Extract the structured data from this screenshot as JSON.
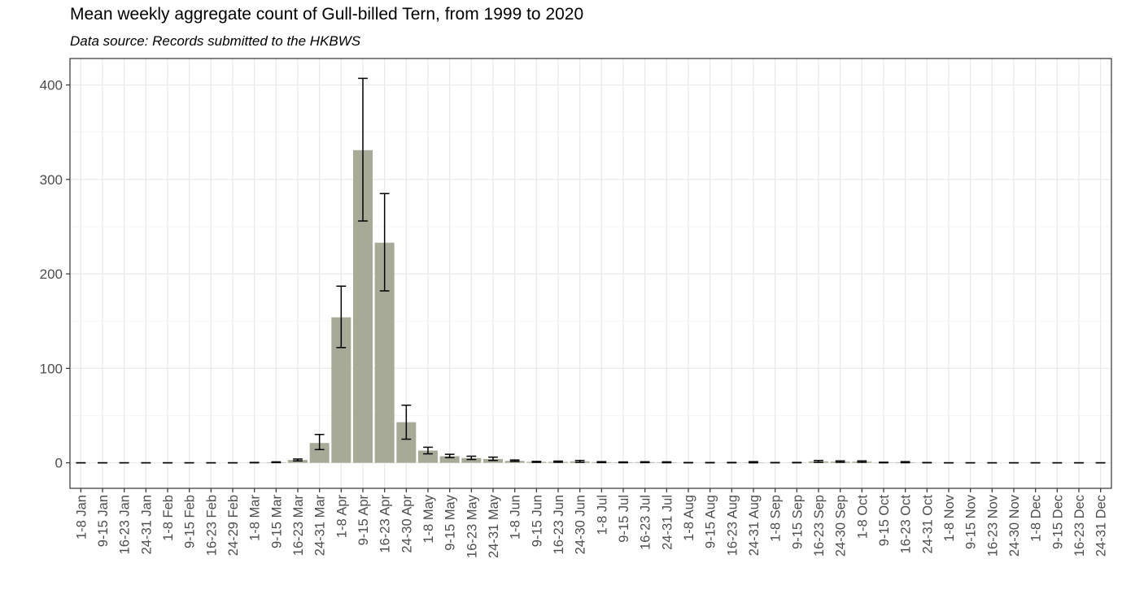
{
  "title": "Mean weekly aggregate count of Gull-billed Tern, from 1999 to 2020",
  "subtitle": "Data source: Records submitted to the HKBWS",
  "chart_data": {
    "type": "bar",
    "title": "Mean weekly aggregate count of Gull-billed Tern, from 1999 to 2020",
    "subtitle": "Data source: Records submitted to the HKBWS",
    "xlabel": "",
    "ylabel": "",
    "ylim": [
      -27,
      428
    ],
    "yticks": [
      0,
      100,
      200,
      300,
      400
    ],
    "grid": true,
    "bar_color": "#a8aa98",
    "categories": [
      "1-8 Jan",
      "9-15 Jan",
      "16-23 Jan",
      "24-31 Jan",
      "1-8 Feb",
      "9-15 Feb",
      "16-23 Feb",
      "24-29 Feb",
      "1-8 Mar",
      "9-15 Mar",
      "16-23 Mar",
      "24-31 Mar",
      "1-8 Apr",
      "9-15 Apr",
      "16-23 Apr",
      "24-30 Apr",
      "1-8 May",
      "9-15 May",
      "16-23 May",
      "24-31 May",
      "1-8 Jun",
      "9-15 Jun",
      "16-23 Jun",
      "24-30 Jun",
      "1-8 Jul",
      "9-15 Jul",
      "16-23 Jul",
      "24-31 Jul",
      "1-8 Aug",
      "9-15 Aug",
      "16-23 Aug",
      "24-31 Aug",
      "1-8 Sep",
      "9-15 Sep",
      "16-23 Sep",
      "24-30 Sep",
      "1-8 Oct",
      "9-15 Oct",
      "16-23 Oct",
      "24-31 Oct",
      "1-8 Nov",
      "9-15 Nov",
      "16-23 Nov",
      "24-30 Nov",
      "1-8 Dec",
      "9-15 Dec",
      "16-23 Dec",
      "24-31 Dec"
    ],
    "values": [
      0,
      0,
      0,
      0,
      0,
      0,
      0,
      0,
      0.1,
      0.5,
      3,
      21,
      154,
      331,
      233,
      43,
      13,
      7,
      5,
      4,
      2,
      1,
      1,
      1.5,
      0.7,
      0.5,
      0.7,
      0.5,
      0.1,
      0.1,
      0.2,
      0.5,
      0.1,
      0.2,
      1.5,
      1.2,
      1.2,
      0.3,
      0.6,
      0.1,
      0,
      0,
      0,
      0,
      0,
      0,
      0,
      0
    ],
    "error_low": [
      0,
      0,
      0,
      0,
      0,
      0,
      0,
      0,
      0,
      0.2,
      2,
      14,
      122,
      256,
      182,
      25,
      9.5,
      5.5,
      3.5,
      2.5,
      1.5,
      0.5,
      0.5,
      0.5,
      0.2,
      0.1,
      0.2,
      0.1,
      0,
      0,
      0,
      0,
      0,
      0,
      0.5,
      0.5,
      0.5,
      0,
      0.1,
      0,
      0,
      0,
      0,
      0,
      0,
      0,
      0,
      0
    ],
    "error_high": [
      0,
      0,
      0,
      0,
      0,
      0,
      0,
      0,
      0.4,
      1,
      4,
      30,
      187,
      407,
      285,
      61,
      16.5,
      9,
      7,
      6,
      3,
      1.5,
      1.8,
      2.5,
      1.2,
      0.9,
      1.1,
      1,
      0.3,
      0.3,
      0.4,
      1.2,
      0.3,
      0.4,
      2.5,
      2,
      2,
      0.6,
      1.2,
      0.3,
      0,
      0,
      0,
      0,
      0,
      0,
      0,
      0
    ]
  }
}
